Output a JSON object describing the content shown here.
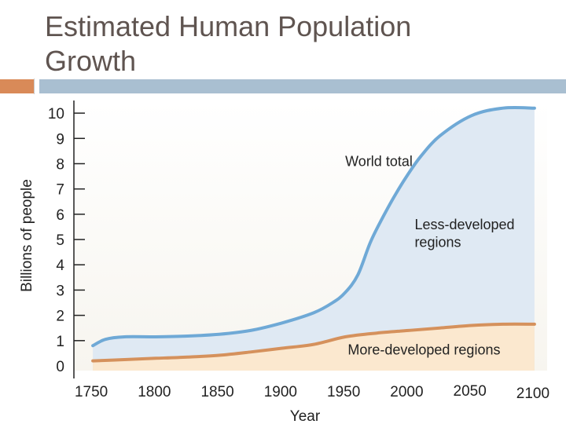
{
  "slide": {
    "title_line1": "Estimated Human Population",
    "title_line2": "Growth",
    "colors": {
      "title_text": "#5f5450",
      "accent_orange": "#d98a58",
      "accent_blue": "#a9bfd1"
    }
  },
  "chart_data": {
    "type": "area",
    "title": "Estimated Human Population Growth",
    "xlabel": "Year",
    "ylabel": "Billions of people",
    "xlim": [
      1735,
      2110
    ],
    "ylim": [
      0,
      10.5
    ],
    "x_ticks": [
      1750,
      1800,
      1850,
      1900,
      1950,
      2000,
      2050,
      2100
    ],
    "y_ticks": [
      0,
      1,
      2,
      3,
      4,
      5,
      6,
      7,
      8,
      9,
      10
    ],
    "grid": false,
    "series": [
      {
        "name": "World total",
        "color": "#6fa9d6",
        "fill": "#dfe9f3",
        "x": [
          1750,
          1760,
          1775,
          1800,
          1825,
          1850,
          1875,
          1900,
          1925,
          1940,
          1950,
          1960,
          1970,
          1980,
          1990,
          2000,
          2010,
          2025,
          2050,
          2075,
          2100
        ],
        "y": [
          0.8,
          1.05,
          1.15,
          1.15,
          1.18,
          1.25,
          1.4,
          1.7,
          2.1,
          2.5,
          2.9,
          3.6,
          4.9,
          5.9,
          6.8,
          7.6,
          8.3,
          9.1,
          9.9,
          10.2,
          10.2
        ]
      },
      {
        "name": "More-developed regions",
        "color": "#d5915c",
        "fill": "#fbe8cf",
        "x": [
          1750,
          1775,
          1800,
          1825,
          1850,
          1875,
          1900,
          1925,
          1950,
          1975,
          2000,
          2025,
          2050,
          2075,
          2100
        ],
        "y": [
          0.2,
          0.25,
          0.3,
          0.35,
          0.42,
          0.55,
          0.7,
          0.85,
          1.15,
          1.3,
          1.4,
          1.5,
          1.6,
          1.65,
          1.65
        ]
      }
    ],
    "annotations": [
      {
        "text": "World total",
        "x": 1950,
        "y": 7.9
      },
      {
        "text": "Less-developed",
        "x": 2005,
        "y": 5.4
      },
      {
        "text": "regions",
        "x": 2005,
        "y": 4.7
      },
      {
        "text": "More-developed regions",
        "x": 1952,
        "y": 0.45
      }
    ]
  }
}
